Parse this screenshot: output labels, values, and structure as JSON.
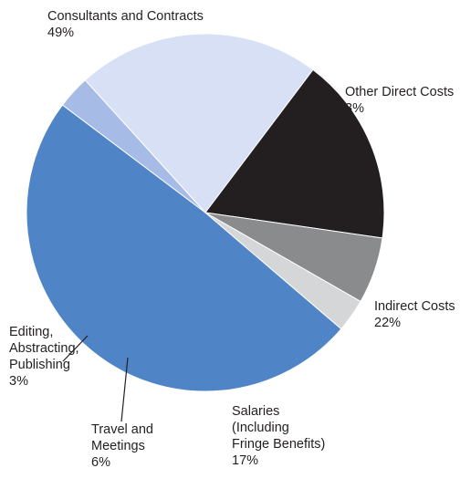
{
  "chart_data": {
    "type": "pie",
    "title": "",
    "start_angle_deg": 130.6,
    "direction": "clockwise",
    "slices": [
      {
        "label": "Consultants and Contracts",
        "label_lines": [
          "Consultants and Contracts"
        ],
        "value": 49,
        "value_label": "49%",
        "color": "#4f84c7"
      },
      {
        "label": "Other Direct Costs",
        "label_lines": [
          "Other Direct Costs"
        ],
        "value": 3,
        "value_label": "3%",
        "color": "#a6bce6"
      },
      {
        "label": "Indirect Costs",
        "label_lines": [
          "Indirect Costs"
        ],
        "value": 22,
        "value_label": "22%",
        "color": "#d7e0f4"
      },
      {
        "label": "Salaries (Including Fringe Benefits)",
        "label_lines": [
          "Salaries",
          "(Including",
          "Fringe Benefits)"
        ],
        "value": 17,
        "value_label": "17%",
        "color": "#231f20"
      },
      {
        "label": "Travel and Meetings",
        "label_lines": [
          "Travel and",
          "Meetings"
        ],
        "value": 6,
        "value_label": "6%",
        "color": "#8a8b8d"
      },
      {
        "label": "Editing, Abstracting, Publishing",
        "label_lines": [
          "Editing,",
          "Abstracting,",
          "Publishing"
        ],
        "value": 3,
        "value_label": "3%",
        "color": "#d5d6d8"
      }
    ]
  }
}
